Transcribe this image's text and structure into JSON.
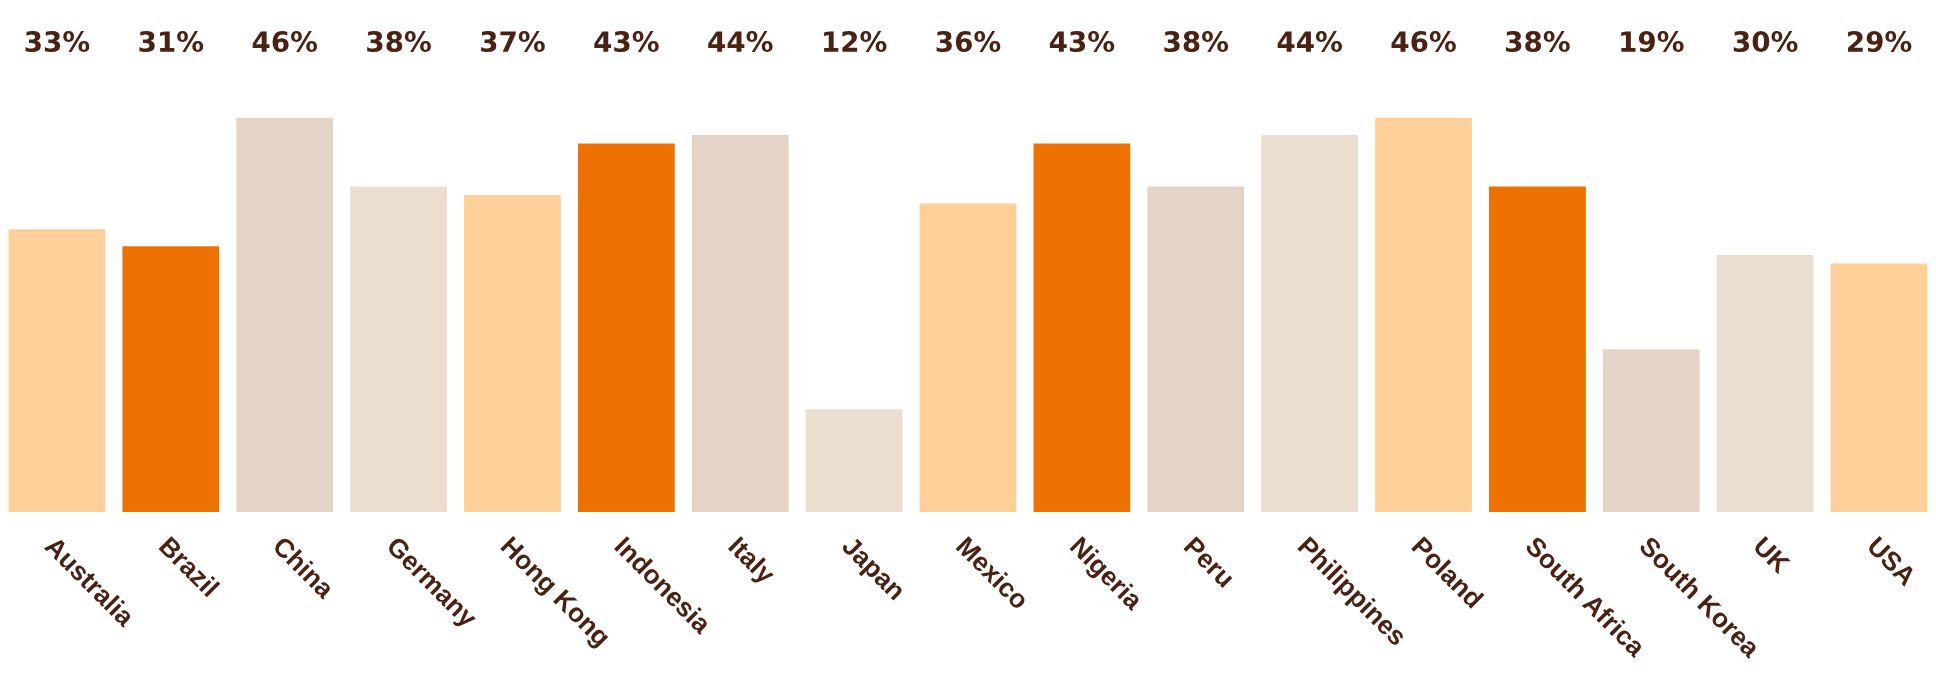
{
  "chart_data": {
    "type": "bar",
    "categories": [
      "Australia",
      "Brazil",
      "China",
      "Germany",
      "Hong Kong",
      "Indonesia",
      "Italy",
      "Japan",
      "Mexico",
      "Nigeria",
      "Peru",
      "Philippines",
      "Poland",
      "South Africa",
      "South Korea",
      "UK",
      "USA"
    ],
    "values": [
      33,
      31,
      46,
      38,
      37,
      43,
      44,
      12,
      36,
      43,
      38,
      44,
      46,
      38,
      19,
      30,
      29
    ],
    "value_labels": [
      "33%",
      "31%",
      "46%",
      "38%",
      "37%",
      "43%",
      "44%",
      "12%",
      "36%",
      "43%",
      "38%",
      "44%",
      "46%",
      "38%",
      "19%",
      "30%",
      "29%"
    ],
    "colors": [
      "#fecf99",
      "#ee7203",
      "#e4d4c6",
      "#ebded1",
      "#fecf99",
      "#ee7203",
      "#e4d4c6",
      "#ebded1",
      "#fecf99",
      "#ee7203",
      "#e4d4c6",
      "#ebded1",
      "#fecf99",
      "#ee7203",
      "#e4d4c6",
      "#ebded1",
      "#fecf99"
    ],
    "grid": false,
    "legend": false
  }
}
